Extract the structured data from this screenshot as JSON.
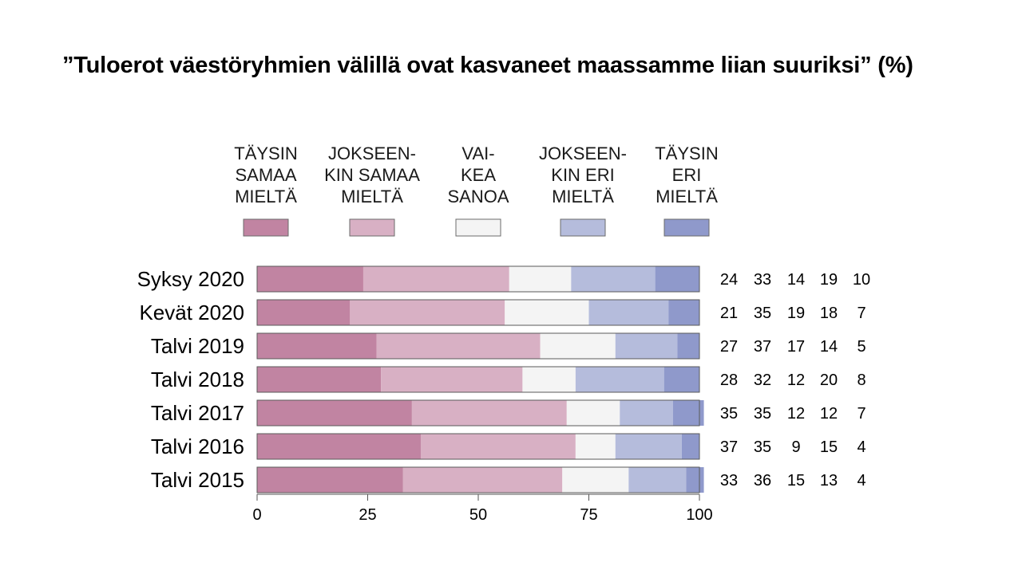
{
  "title": "”Tuloerot väestöryhmien välillä ovat kasvaneet maassamme liian suuriksi” (%)",
  "chart_data": {
    "type": "bar",
    "orientation": "horizontal",
    "stacked": true,
    "categories": [
      "Syksy 2020",
      "Kevät 2020",
      "Talvi 2019",
      "Talvi 2018",
      "Talvi 2017",
      "Talvi 2016",
      "Talvi 2015"
    ],
    "series": [
      {
        "name": "TÄYSIN SAMAA MIELTÄ",
        "legend_lines": [
          "TÄYSIN",
          "SAMAA",
          "MIELTÄ"
        ],
        "color": "#c184a2",
        "values": [
          24,
          21,
          27,
          28,
          35,
          37,
          33
        ]
      },
      {
        "name": "JOKSEEN-KIN SAMAA MIELTÄ",
        "legend_lines": [
          "JOKSEEN-",
          "KIN SAMAA",
          "MIELTÄ"
        ],
        "color": "#d8b0c4",
        "values": [
          33,
          35,
          37,
          32,
          35,
          35,
          36
        ]
      },
      {
        "name": "VAI-KEA SANOA",
        "legend_lines": [
          "VAI-",
          "KEA",
          "SANOA"
        ],
        "color": "#f4f4f4",
        "values": [
          14,
          19,
          17,
          12,
          12,
          9,
          15
        ]
      },
      {
        "name": "JOKSEEN-KIN ERI MIELTÄ",
        "legend_lines": [
          "JOKSEEN-",
          "KIN ERI",
          "MIELTÄ"
        ],
        "color": "#b5bcdc",
        "values": [
          19,
          18,
          14,
          20,
          12,
          15,
          13
        ]
      },
      {
        "name": "TÄYSIN ERI MIELTÄ",
        "legend_lines": [
          "TÄYSIN",
          "ERI",
          "MIELTÄ"
        ],
        "color": "#8f99cb",
        "values": [
          10,
          7,
          5,
          8,
          7,
          4,
          4
        ]
      }
    ],
    "xticks": [
      0,
      25,
      50,
      75,
      100
    ],
    "xlim": [
      0,
      100
    ],
    "legend_position": "top",
    "grid": false,
    "value_columns": true
  }
}
